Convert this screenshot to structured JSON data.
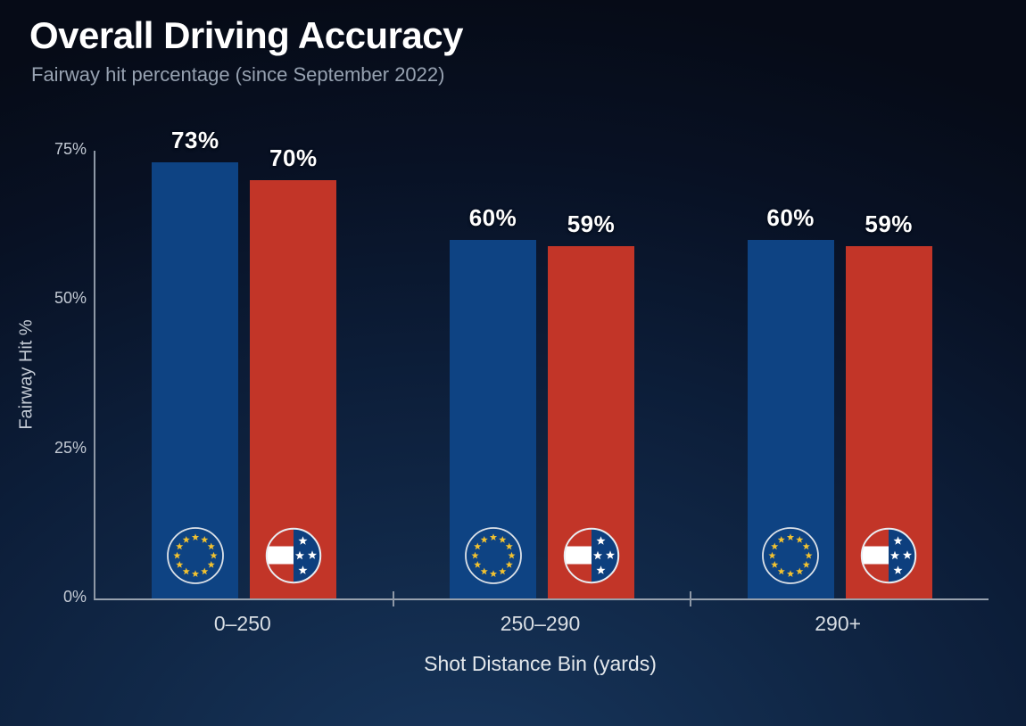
{
  "header": {
    "title": "Overall Driving Accuracy",
    "subtitle": "Fairway hit percentage (since September 2022)"
  },
  "chart_data": {
    "type": "bar",
    "title": "Overall Driving Accuracy",
    "subtitle": "Fairway hit percentage (since September 2022)",
    "categories": [
      "0–250",
      "250–290",
      "290+"
    ],
    "series": [
      {
        "name": "Europe",
        "icon": "europe-team-icon",
        "color": "#0e4383",
        "values": [
          73,
          60,
          60
        ],
        "value_labels": [
          "73%",
          "60%",
          "60%"
        ]
      },
      {
        "name": "USA",
        "icon": "usa-team-icon",
        "color": "#c23528",
        "values": [
          70,
          59,
          59
        ],
        "value_labels": [
          "70%",
          "59%",
          "59%"
        ]
      }
    ],
    "xlabel": "Shot Distance Bin (yards)",
    "ylabel": "Fairway Hit %",
    "yticks": [
      {
        "label": "0%",
        "value": 0
      },
      {
        "label": "25%",
        "value": 25
      },
      {
        "label": "50%",
        "value": 50
      },
      {
        "label": "75%",
        "value": 75
      }
    ],
    "ylim": [
      0,
      75
    ],
    "grid": false,
    "legend": "team logos inside bars",
    "value_suffix": "%"
  },
  "icons": {
    "europe": {
      "name": "europe-team-icon",
      "star_color": "#f2c230",
      "ring_color": "#dde2e8"
    },
    "usa": {
      "name": "usa-team-icon",
      "navy": "#0d3f7e",
      "red": "#c23528",
      "stripe": "#ffffff",
      "ring_color": "#e9edf2"
    }
  },
  "colors": {
    "background_dark": "#060b17",
    "background_glow": "#18375e",
    "europe_bar": "#0e4383",
    "usa_bar": "#c23528",
    "axis_line": "#8e98a6",
    "title_text": "#ffffff",
    "subtitle_text": "#97a2b1",
    "ytick_text": "#c3cad4",
    "xtick_text": "#d9dee4",
    "value_label_text": "#ffffff"
  }
}
